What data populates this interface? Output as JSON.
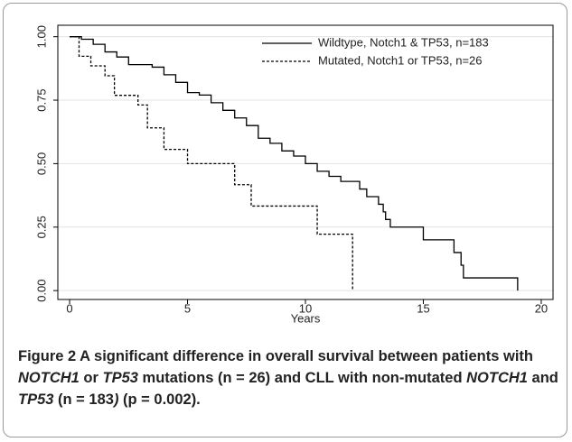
{
  "chart_data": {
    "type": "step-line",
    "xlabel": "Years",
    "xlim": [
      -0.5,
      20.5
    ],
    "xticks": [
      0,
      5,
      10,
      15,
      20
    ],
    "ylim": [
      -0.035,
      1.045
    ],
    "yticks": [
      {
        "value": 0,
        "label": "0.00"
      },
      0.25,
      {
        "value": 0.5,
        "label": "0.50"
      },
      0.75,
      {
        "value": 1,
        "label": "1.00"
      }
    ],
    "grid": true,
    "legend": "top-right",
    "series": [
      {
        "name": "Wildtype, Notch1 & TP53, n=183",
        "color": "#000000",
        "dash": false,
        "x": [
          0,
          0.5,
          0.5,
          1,
          1,
          1.5,
          1.5,
          2,
          2,
          2.5,
          2.5,
          3.5,
          3.5,
          4,
          4,
          4.5,
          4.5,
          5,
          5,
          5.5,
          5.5,
          6,
          6,
          6.5,
          6.5,
          7,
          7,
          7.5,
          7.5,
          8,
          8,
          8.5,
          8.5,
          9,
          9,
          9.5,
          9.5,
          10,
          10,
          10.5,
          10.5,
          11,
          11,
          11.5,
          11.5,
          12.3,
          12.3,
          12.6,
          12.6,
          13.1,
          13.1,
          13.3,
          13.3,
          13.4,
          13.4,
          13.6,
          13.6,
          15,
          15,
          16.3,
          16.3,
          16.6,
          16.6,
          16.7,
          16.7,
          19,
          19
        ],
        "values": [
          1,
          1,
          0.99,
          0.99,
          0.97,
          0.97,
          0.94,
          0.94,
          0.92,
          0.92,
          0.89,
          0.89,
          0.88,
          0.88,
          0.85,
          0.85,
          0.82,
          0.82,
          0.78,
          0.78,
          0.77,
          0.77,
          0.74,
          0.74,
          0.71,
          0.71,
          0.68,
          0.68,
          0.65,
          0.65,
          0.6,
          0.6,
          0.58,
          0.58,
          0.55,
          0.55,
          0.53,
          0.53,
          0.5,
          0.5,
          0.47,
          0.47,
          0.45,
          0.45,
          0.43,
          0.43,
          0.4,
          0.4,
          0.37,
          0.37,
          0.34,
          0.34,
          0.31,
          0.31,
          0.28,
          0.28,
          0.25,
          0.25,
          0.2,
          0.2,
          0.15,
          0.15,
          0.1,
          0.1,
          0.05,
          0.05,
          0
        ]
      },
      {
        "name": "Mutated, Notch1 or TP53, n=26",
        "color": "#000000",
        "dash": true,
        "x": [
          0,
          0.4,
          0.4,
          0.9,
          0.9,
          1.5,
          1.5,
          1.9,
          1.9,
          2.9,
          2.9,
          3.3,
          3.3,
          4,
          4,
          5,
          5,
          7,
          7,
          7.7,
          7.7,
          10.5,
          10.5,
          12,
          12
        ],
        "values": [
          1,
          1,
          0.923,
          0.923,
          0.885,
          0.885,
          0.846,
          0.846,
          0.769,
          0.769,
          0.731,
          0.731,
          0.641,
          0.641,
          0.556,
          0.556,
          0.5,
          0.5,
          0.417,
          0.417,
          0.333,
          0.333,
          0.222,
          0.222,
          0
        ]
      }
    ]
  },
  "caption": {
    "label": "Figure 2",
    "segments": [
      {
        "text": " A significant difference in overall survival between patients with ",
        "italic": false
      },
      {
        "text": "NOTCH1",
        "italic": true
      },
      {
        "text": " or ",
        "italic": false
      },
      {
        "text": "TP53",
        "italic": true
      },
      {
        "text": " mutations (n = 26) and CLL with non-mutated ",
        "italic": false
      },
      {
        "text": "NOTCH1",
        "italic": true
      },
      {
        "text": " and ",
        "italic": false
      },
      {
        "text": "TP53",
        "italic": true
      },
      {
        "text": " (n = 183",
        "italic": false
      },
      {
        "text": ")",
        "italic": true
      },
      {
        "text": " (p = 0.002).",
        "italic": false
      }
    ]
  }
}
